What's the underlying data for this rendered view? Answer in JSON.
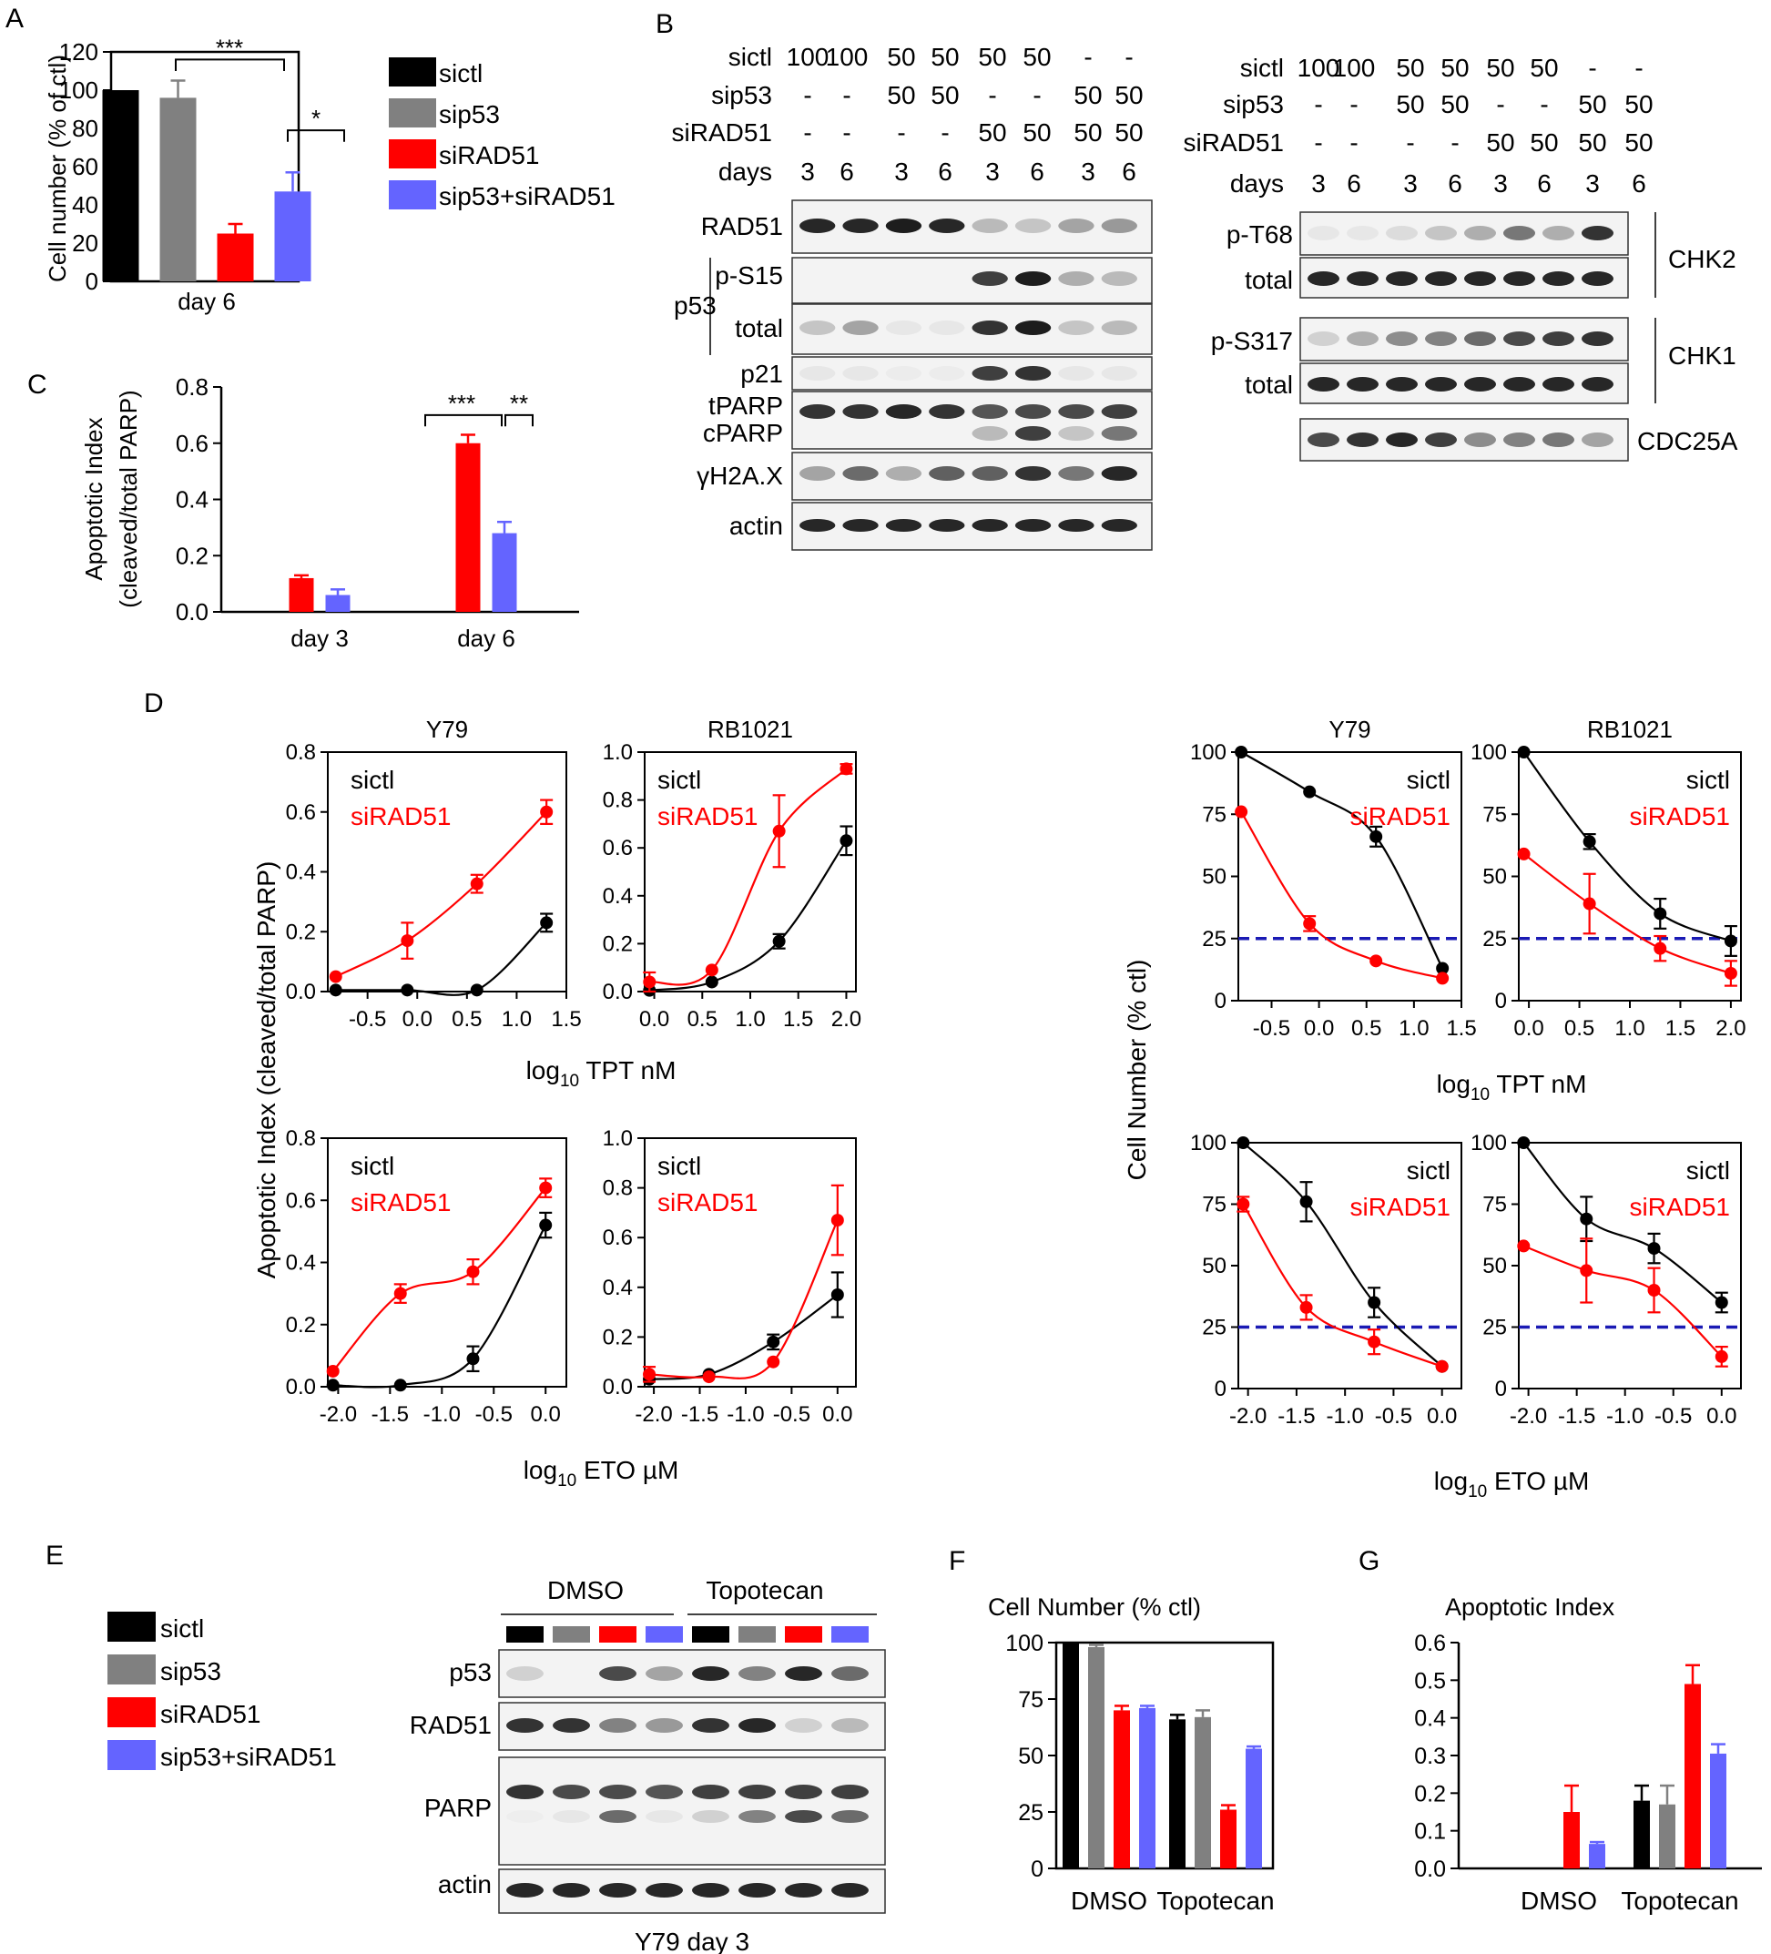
{
  "colors": {
    "black": "#000000",
    "gray": "#808080",
    "red": "#ff0000",
    "blue": "#6464ff",
    "ref": "#1a1ab4"
  },
  "panel_letters": [
    "A",
    "B",
    "C",
    "D",
    "E",
    "F",
    "G"
  ],
  "chart_data": [
    {
      "id": "A",
      "type": "bar",
      "title": "",
      "ylabel": "Cell number (% of ctl)",
      "ylim": [
        0,
        120
      ],
      "yticks": [
        0,
        20,
        40,
        60,
        80,
        100,
        120
      ],
      "categories": [
        "day 6"
      ],
      "series": [
        {
          "name": "sictl",
          "values": [
            100
          ],
          "err": [
            0
          ]
        },
        {
          "name": "sip53",
          "values": [
            96
          ],
          "err": [
            9
          ]
        },
        {
          "name": "siRAD51",
          "values": [
            25
          ],
          "err": [
            5
          ]
        },
        {
          "name": "sip53+siRAD51",
          "values": [
            47
          ],
          "err": [
            10
          ]
        }
      ],
      "legend": [
        "sictl",
        "sip53",
        "siRAD51",
        "sip53+siRAD51"
      ],
      "annotations": [
        "***",
        "*"
      ]
    },
    {
      "id": "C",
      "type": "bar",
      "ylabel": "Apoptotic Index",
      "ylabel2": "(cleaved/total PARP)",
      "ylim": [
        0,
        0.8
      ],
      "yticks": [
        "0.0",
        "0.2",
        "0.4",
        "0.6",
        "0.8"
      ],
      "categories": [
        "day 3",
        "day 6"
      ],
      "series": [
        {
          "name": "siRAD51",
          "values": [
            0.12,
            0.6
          ],
          "err": [
            0.01,
            0.03
          ]
        },
        {
          "name": "sip53+siRAD51",
          "values": [
            0.06,
            0.28
          ],
          "err": [
            0.02,
            0.04
          ]
        }
      ],
      "annotations": [
        "***",
        "**"
      ]
    },
    {
      "id": "D1",
      "type": "line",
      "title": "Y79",
      "xlim": [
        -0.9,
        1.5
      ],
      "ylim": [
        0,
        0.8
      ],
      "xticks": [
        "-0.5",
        "0.0",
        "0.5",
        "1.0",
        "1.5"
      ],
      "yticks": [
        "0.0",
        "0.2",
        "0.4",
        "0.6",
        "0.8"
      ],
      "series": [
        {
          "name": "sictl",
          "x": [
            -0.82,
            -0.1,
            0.6,
            1.3
          ],
          "y": [
            0.005,
            0.005,
            0.005,
            0.23
          ],
          "err": [
            0,
            0,
            0,
            0.03
          ]
        },
        {
          "name": "siRAD51",
          "x": [
            -0.82,
            -0.1,
            0.6,
            1.3
          ],
          "y": [
            0.05,
            0.17,
            0.36,
            0.6
          ],
          "err": [
            0,
            0.06,
            0.03,
            0.04
          ]
        }
      ]
    },
    {
      "id": "D2",
      "type": "line",
      "title": "RB1021",
      "xlim": [
        -0.1,
        2.1
      ],
      "ylim": [
        0,
        1.0
      ],
      "xticks": [
        "0.0",
        "0.5",
        "1.0",
        "1.5",
        "2.0"
      ],
      "yticks": [
        "0.0",
        "0.2",
        "0.4",
        "0.6",
        "0.8",
        "1.0"
      ],
      "series": [
        {
          "name": "sictl",
          "x": [
            -0.05,
            0.6,
            1.3,
            2.0
          ],
          "y": [
            0.005,
            0.04,
            0.21,
            0.63
          ],
          "err": [
            0,
            0,
            0.03,
            0.06
          ]
        },
        {
          "name": "siRAD51",
          "x": [
            -0.05,
            0.6,
            1.3,
            2.0
          ],
          "y": [
            0.04,
            0.09,
            0.67,
            0.93
          ],
          "err": [
            0.04,
            0,
            0.15,
            0.02
          ]
        }
      ]
    },
    {
      "id": "D3",
      "type": "line",
      "title": "",
      "xlim": [
        -2.1,
        0.2
      ],
      "ylim": [
        0,
        0.8
      ],
      "xticks": [
        "-2.0",
        "-1.5",
        "-1.0",
        "-0.5",
        "0.0"
      ],
      "yticks": [
        "0.0",
        "0.2",
        "0.4",
        "0.6",
        "0.8"
      ],
      "series": [
        {
          "name": "sictl",
          "x": [
            -2.05,
            -1.4,
            -0.7,
            0.0
          ],
          "y": [
            0.005,
            0.005,
            0.09,
            0.52
          ],
          "err": [
            0,
            0,
            0.04,
            0.04
          ]
        },
        {
          "name": "siRAD51",
          "x": [
            -2.05,
            -1.4,
            -0.7,
            0.0
          ],
          "y": [
            0.05,
            0.3,
            0.37,
            0.64
          ],
          "err": [
            0,
            0.03,
            0.04,
            0.03
          ]
        }
      ]
    },
    {
      "id": "D4",
      "type": "line",
      "title": "",
      "xlim": [
        -2.1,
        0.2
      ],
      "ylim": [
        0,
        1.0
      ],
      "xticks": [
        "-2.0",
        "-1.5",
        "-1.0",
        "-0.5",
        "0.0"
      ],
      "yticks": [
        "0.0",
        "0.2",
        "0.4",
        "0.6",
        "0.8",
        "1.0"
      ],
      "series": [
        {
          "name": "sictl",
          "x": [
            -2.05,
            -1.4,
            -0.7,
            0.0
          ],
          "y": [
            0.03,
            0.05,
            0.18,
            0.37
          ],
          "err": [
            0,
            0,
            0.03,
            0.09
          ]
        },
        {
          "name": "siRAD51",
          "x": [
            -2.05,
            -1.4,
            -0.7,
            0.0
          ],
          "y": [
            0.05,
            0.04,
            0.1,
            0.67
          ],
          "err": [
            0.03,
            0,
            0,
            0.14
          ]
        }
      ]
    },
    {
      "id": "D5",
      "type": "line",
      "title": "Y79",
      "xlim": [
        -0.85,
        1.5
      ],
      "ylim": [
        0,
        100
      ],
      "xticks": [
        "-0.5",
        "0.0",
        "0.5",
        "1.0",
        "1.5"
      ],
      "xticklabels": [
        "-0.5",
        "0.0",
        "0.5",
        "1.0",
        "1.5"
      ],
      "yticks": [
        "0",
        "25",
        "50",
        "75",
        "100"
      ],
      "refline": 25,
      "series": [
        {
          "name": "sictl",
          "x": [
            -0.82,
            -0.1,
            0.6,
            1.3
          ],
          "y": [
            100,
            84,
            66,
            13
          ],
          "err": [
            0,
            0,
            4,
            0
          ]
        },
        {
          "name": "siRAD51",
          "x": [
            -0.82,
            -0.1,
            0.6,
            1.3
          ],
          "y": [
            76,
            31,
            16,
            9
          ],
          "err": [
            0,
            3,
            0,
            0
          ]
        }
      ]
    },
    {
      "id": "D6",
      "type": "line",
      "title": "RB1021",
      "xlim": [
        -0.1,
        2.1
      ],
      "ylim": [
        0,
        100
      ],
      "xticks": [
        "0.0",
        "0.5",
        "1.0",
        "1.5",
        "2.0"
      ],
      "yticks": [
        "0",
        "25",
        "50",
        "75",
        "100"
      ],
      "refline": 25,
      "series": [
        {
          "name": "sictl",
          "x": [
            -0.05,
            0.6,
            1.3,
            2.0
          ],
          "y": [
            100,
            64,
            35,
            24
          ],
          "err": [
            0,
            3,
            6,
            6
          ]
        },
        {
          "name": "siRAD51",
          "x": [
            -0.05,
            0.6,
            1.3,
            2.0
          ],
          "y": [
            59,
            39,
            21,
            11
          ],
          "err": [
            0,
            12,
            5,
            5
          ]
        }
      ]
    },
    {
      "id": "D7",
      "type": "line",
      "title": "",
      "xlim": [
        -2.1,
        0.2
      ],
      "ylim": [
        0,
        100
      ],
      "xticks": [
        "-2.0",
        "-1.5",
        "-1.0",
        "-0.5",
        "0.0"
      ],
      "yticks": [
        "0",
        "25",
        "50",
        "75",
        "100"
      ],
      "refline": 25,
      "series": [
        {
          "name": "sictl",
          "x": [
            -2.05,
            -1.4,
            -0.7,
            0.0
          ],
          "y": [
            100,
            76,
            35,
            9
          ],
          "err": [
            0,
            8,
            6,
            0
          ]
        },
        {
          "name": "siRAD51",
          "x": [
            -2.05,
            -1.4,
            -0.7,
            0.0
          ],
          "y": [
            75,
            33,
            19,
            9
          ],
          "err": [
            3,
            5,
            5,
            0
          ]
        }
      ]
    },
    {
      "id": "D8",
      "type": "line",
      "title": "",
      "xlim": [
        -2.1,
        0.2
      ],
      "ylim": [
        0,
        100
      ],
      "xticks": [
        "-2.0",
        "-1.5",
        "-1.0",
        "-0.5",
        "0.0"
      ],
      "yticks": [
        "0",
        "25",
        "50",
        "75",
        "100"
      ],
      "refline": 25,
      "series": [
        {
          "name": "sictl",
          "x": [
            -2.05,
            -1.4,
            -0.7,
            0.0
          ],
          "y": [
            100,
            69,
            57,
            35
          ],
          "err": [
            0,
            9,
            6,
            4
          ]
        },
        {
          "name": "siRAD51",
          "x": [
            -2.05,
            -1.4,
            -0.7,
            0.0
          ],
          "y": [
            58,
            48,
            40,
            13
          ],
          "err": [
            0,
            13,
            9,
            4
          ]
        }
      ]
    },
    {
      "id": "F",
      "type": "bar",
      "title": "Cell Number (% ctl)",
      "ylim": [
        0,
        100
      ],
      "yticks": [
        "0",
        "25",
        "50",
        "75",
        "100"
      ],
      "categories": [
        "DMSO",
        "Topotecan"
      ],
      "series": [
        {
          "name": "sictl",
          "values": [
            100,
            66
          ],
          "err": [
            0,
            2
          ]
        },
        {
          "name": "sip53",
          "values": [
            98,
            67
          ],
          "err": [
            1,
            3
          ]
        },
        {
          "name": "siRAD51",
          "values": [
            70,
            26
          ],
          "err": [
            2,
            2
          ]
        },
        {
          "name": "sip53+siRAD51",
          "values": [
            71,
            53
          ],
          "err": [
            1,
            1
          ]
        }
      ]
    },
    {
      "id": "G",
      "type": "bar",
      "title": "Apoptotic Index",
      "ylim": [
        0,
        0.6
      ],
      "yticks": [
        "0.0",
        "0.1",
        "0.2",
        "0.3",
        "0.4",
        "0.5",
        "0.6"
      ],
      "categories": [
        "DMSO",
        "Topotecan"
      ],
      "series": [
        {
          "name": "sictl",
          "values": [
            0,
            0.18
          ],
          "err": [
            0,
            0.04
          ]
        },
        {
          "name": "sip53",
          "values": [
            0,
            0.17
          ],
          "err": [
            0,
            0.05
          ]
        },
        {
          "name": "siRAD51",
          "values": [
            0.15,
            0.49
          ],
          "err": [
            0.07,
            0.05
          ]
        },
        {
          "name": "sip53+siRAD51",
          "values": [
            0.065,
            0.305
          ],
          "err": [
            0.005,
            0.025
          ]
        }
      ]
    }
  ],
  "legend_D": {
    "a": "sictl",
    "b": "siRAD51"
  },
  "D_labels": {
    "ylabel_left": "Apoptotic Index (cleaved/total PARP)",
    "ylabel_right": "Cell Number  (% ctl)",
    "tpt": "TPT nM",
    "eto": "ETO µM",
    "log": "log",
    "sub": "10"
  },
  "blotB": {
    "conditions": [
      {
        "label": "sictl",
        "vals": [
          "100",
          "100",
          "50",
          "50",
          "50",
          "50",
          "-",
          "-"
        ]
      },
      {
        "label": "sip53",
        "vals": [
          "-",
          "-",
          "50",
          "50",
          "-",
          "-",
          "50",
          "50"
        ]
      },
      {
        "label": "siRAD51",
        "vals": [
          "-",
          "-",
          "-",
          "-",
          "50",
          "50",
          "50",
          "50"
        ]
      },
      {
        "label": "days",
        "vals": [
          "3",
          "6",
          "3",
          "6",
          "3",
          "6",
          "3",
          "6"
        ]
      }
    ],
    "left_rows": [
      "RAD51",
      "p-S15",
      "total",
      "p21",
      "tPARP",
      "cPARP",
      "γH2A.X",
      "actin"
    ],
    "p53_group": "p53",
    "right_rows": [
      "p-T68",
      "total",
      "p-S317",
      "total"
    ],
    "right_groups": [
      "CHK2",
      "CHK1",
      "CDC25A"
    ]
  },
  "blotE": {
    "groups": [
      "DMSO",
      "Topotecan"
    ],
    "rows": [
      "p53",
      "RAD51",
      "PARP",
      "actin"
    ],
    "caption": "Y79 day 3",
    "legend": [
      "sictl",
      "sip53",
      "siRAD51",
      "sip53+siRAD51"
    ]
  },
  "F_labels": {
    "xlabels": [
      "DMSO",
      "Topotecan"
    ]
  },
  "G_labels": {
    "xlabels": [
      "DMSO",
      "Topotecan"
    ]
  }
}
